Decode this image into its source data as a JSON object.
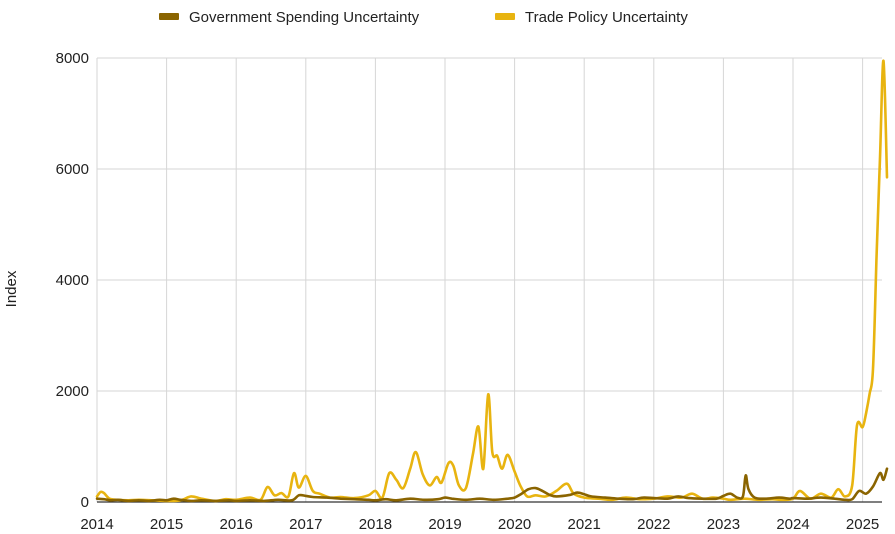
{
  "chart_data": {
    "type": "line",
    "title": "",
    "xlabel": "",
    "ylabel": "Index",
    "xlim": [
      2014.0,
      2025.35
    ],
    "ylim": [
      0,
      8000
    ],
    "x_ticks": [
      "2014",
      "2015",
      "2016",
      "2017",
      "2018",
      "2019",
      "2020",
      "2021",
      "2022",
      "2023",
      "2024",
      "2025"
    ],
    "y_ticks": [
      "0",
      "2000",
      "4000",
      "6000",
      "8000"
    ],
    "grid": true,
    "legend_position": "top",
    "series": [
      {
        "name": "Government Spending Uncertainty",
        "color": "#8a6400",
        "points": [
          [
            2014.0,
            60
          ],
          [
            2014.1,
            50
          ],
          [
            2014.2,
            30
          ],
          [
            2014.3,
            40
          ],
          [
            2014.45,
            20
          ],
          [
            2014.6,
            30
          ],
          [
            2014.75,
            20
          ],
          [
            2014.9,
            40
          ],
          [
            2015.0,
            30
          ],
          [
            2015.1,
            60
          ],
          [
            2015.2,
            40
          ],
          [
            2015.35,
            20
          ],
          [
            2015.5,
            30
          ],
          [
            2015.7,
            20
          ],
          [
            2015.9,
            30
          ],
          [
            2016.0,
            20
          ],
          [
            2016.2,
            30
          ],
          [
            2016.4,
            20
          ],
          [
            2016.6,
            40
          ],
          [
            2016.8,
            30
          ],
          [
            2016.9,
            120
          ],
          [
            2017.0,
            110
          ],
          [
            2017.1,
            90
          ],
          [
            2017.3,
            80
          ],
          [
            2017.5,
            60
          ],
          [
            2017.7,
            50
          ],
          [
            2017.9,
            40
          ],
          [
            2018.0,
            30
          ],
          [
            2018.15,
            50
          ],
          [
            2018.3,
            30
          ],
          [
            2018.5,
            60
          ],
          [
            2018.7,
            40
          ],
          [
            2018.9,
            50
          ],
          [
            2019.0,
            80
          ],
          [
            2019.1,
            60
          ],
          [
            2019.3,
            40
          ],
          [
            2019.5,
            60
          ],
          [
            2019.7,
            40
          ],
          [
            2019.9,
            60
          ],
          [
            2020.0,
            80
          ],
          [
            2020.1,
            150
          ],
          [
            2020.2,
            230
          ],
          [
            2020.3,
            250
          ],
          [
            2020.4,
            200
          ],
          [
            2020.5,
            130
          ],
          [
            2020.6,
            100
          ],
          [
            2020.8,
            130
          ],
          [
            2020.9,
            170
          ],
          [
            2021.0,
            140
          ],
          [
            2021.1,
            100
          ],
          [
            2021.3,
            80
          ],
          [
            2021.5,
            60
          ],
          [
            2021.7,
            50
          ],
          [
            2021.85,
            80
          ],
          [
            2022.0,
            70
          ],
          [
            2022.2,
            60
          ],
          [
            2022.35,
            100
          ],
          [
            2022.5,
            70
          ],
          [
            2022.7,
            60
          ],
          [
            2022.9,
            60
          ],
          [
            2023.0,
            110
          ],
          [
            2023.1,
            150
          ],
          [
            2023.2,
            80
          ],
          [
            2023.28,
            100
          ],
          [
            2023.32,
            480
          ],
          [
            2023.36,
            230
          ],
          [
            2023.45,
            80
          ],
          [
            2023.6,
            60
          ],
          [
            2023.8,
            80
          ],
          [
            2023.95,
            60
          ],
          [
            2024.0,
            70
          ],
          [
            2024.2,
            60
          ],
          [
            2024.4,
            80
          ],
          [
            2024.6,
            60
          ],
          [
            2024.75,
            40
          ],
          [
            2024.85,
            50
          ],
          [
            2024.95,
            200
          ],
          [
            2025.05,
            150
          ],
          [
            2025.15,
            280
          ],
          [
            2025.25,
            520
          ],
          [
            2025.3,
            400
          ],
          [
            2025.35,
            600
          ]
        ]
      },
      {
        "name": "Trade Policy Uncertainty",
        "color": "#e8b410",
        "points": [
          [
            2014.0,
            100
          ],
          [
            2014.05,
            180
          ],
          [
            2014.1,
            160
          ],
          [
            2014.18,
            60
          ],
          [
            2014.3,
            40
          ],
          [
            2014.45,
            30
          ],
          [
            2014.6,
            40
          ],
          [
            2014.8,
            30
          ],
          [
            2015.0,
            20
          ],
          [
            2015.2,
            30
          ],
          [
            2015.35,
            100
          ],
          [
            2015.5,
            60
          ],
          [
            2015.7,
            20
          ],
          [
            2015.85,
            50
          ],
          [
            2016.0,
            40
          ],
          [
            2016.2,
            80
          ],
          [
            2016.35,
            40
          ],
          [
            2016.45,
            270
          ],
          [
            2016.55,
            120
          ],
          [
            2016.65,
            160
          ],
          [
            2016.75,
            100
          ],
          [
            2016.83,
            520
          ],
          [
            2016.9,
            260
          ],
          [
            2017.0,
            470
          ],
          [
            2017.1,
            200
          ],
          [
            2017.2,
            150
          ],
          [
            2017.35,
            80
          ],
          [
            2017.5,
            90
          ],
          [
            2017.7,
            70
          ],
          [
            2017.9,
            120
          ],
          [
            2018.0,
            200
          ],
          [
            2018.1,
            80
          ],
          [
            2018.2,
            520
          ],
          [
            2018.3,
            400
          ],
          [
            2018.4,
            250
          ],
          [
            2018.5,
            600
          ],
          [
            2018.58,
            900
          ],
          [
            2018.68,
            500
          ],
          [
            2018.78,
            300
          ],
          [
            2018.88,
            450
          ],
          [
            2018.95,
            350
          ],
          [
            2019.05,
            700
          ],
          [
            2019.12,
            650
          ],
          [
            2019.2,
            300
          ],
          [
            2019.3,
            250
          ],
          [
            2019.4,
            850
          ],
          [
            2019.48,
            1360
          ],
          [
            2019.55,
            600
          ],
          [
            2019.62,
            1940
          ],
          [
            2019.68,
            900
          ],
          [
            2019.75,
            830
          ],
          [
            2019.82,
            600
          ],
          [
            2019.9,
            850
          ],
          [
            2020.0,
            550
          ],
          [
            2020.08,
            300
          ],
          [
            2020.18,
            100
          ],
          [
            2020.3,
            120
          ],
          [
            2020.45,
            100
          ],
          [
            2020.6,
            200
          ],
          [
            2020.75,
            330
          ],
          [
            2020.85,
            150
          ],
          [
            2021.0,
            80
          ],
          [
            2021.2,
            60
          ],
          [
            2021.4,
            40
          ],
          [
            2021.6,
            80
          ],
          [
            2021.8,
            50
          ],
          [
            2022.0,
            60
          ],
          [
            2022.2,
            100
          ],
          [
            2022.4,
            80
          ],
          [
            2022.55,
            150
          ],
          [
            2022.7,
            60
          ],
          [
            2022.85,
            80
          ],
          [
            2023.0,
            60
          ],
          [
            2023.1,
            40
          ],
          [
            2023.3,
            60
          ],
          [
            2023.5,
            40
          ],
          [
            2023.7,
            50
          ],
          [
            2023.85,
            40
          ],
          [
            2024.0,
            60
          ],
          [
            2024.1,
            200
          ],
          [
            2024.25,
            60
          ],
          [
            2024.4,
            150
          ],
          [
            2024.55,
            80
          ],
          [
            2024.65,
            230
          ],
          [
            2024.75,
            100
          ],
          [
            2024.85,
            300
          ],
          [
            2024.92,
            1380
          ],
          [
            2025.0,
            1350
          ],
          [
            2025.05,
            1600
          ],
          [
            2025.1,
            1950
          ],
          [
            2025.15,
            2400
          ],
          [
            2025.2,
            4400
          ],
          [
            2025.25,
            6200
          ],
          [
            2025.3,
            7950
          ],
          [
            2025.35,
            5850
          ]
        ]
      }
    ]
  }
}
